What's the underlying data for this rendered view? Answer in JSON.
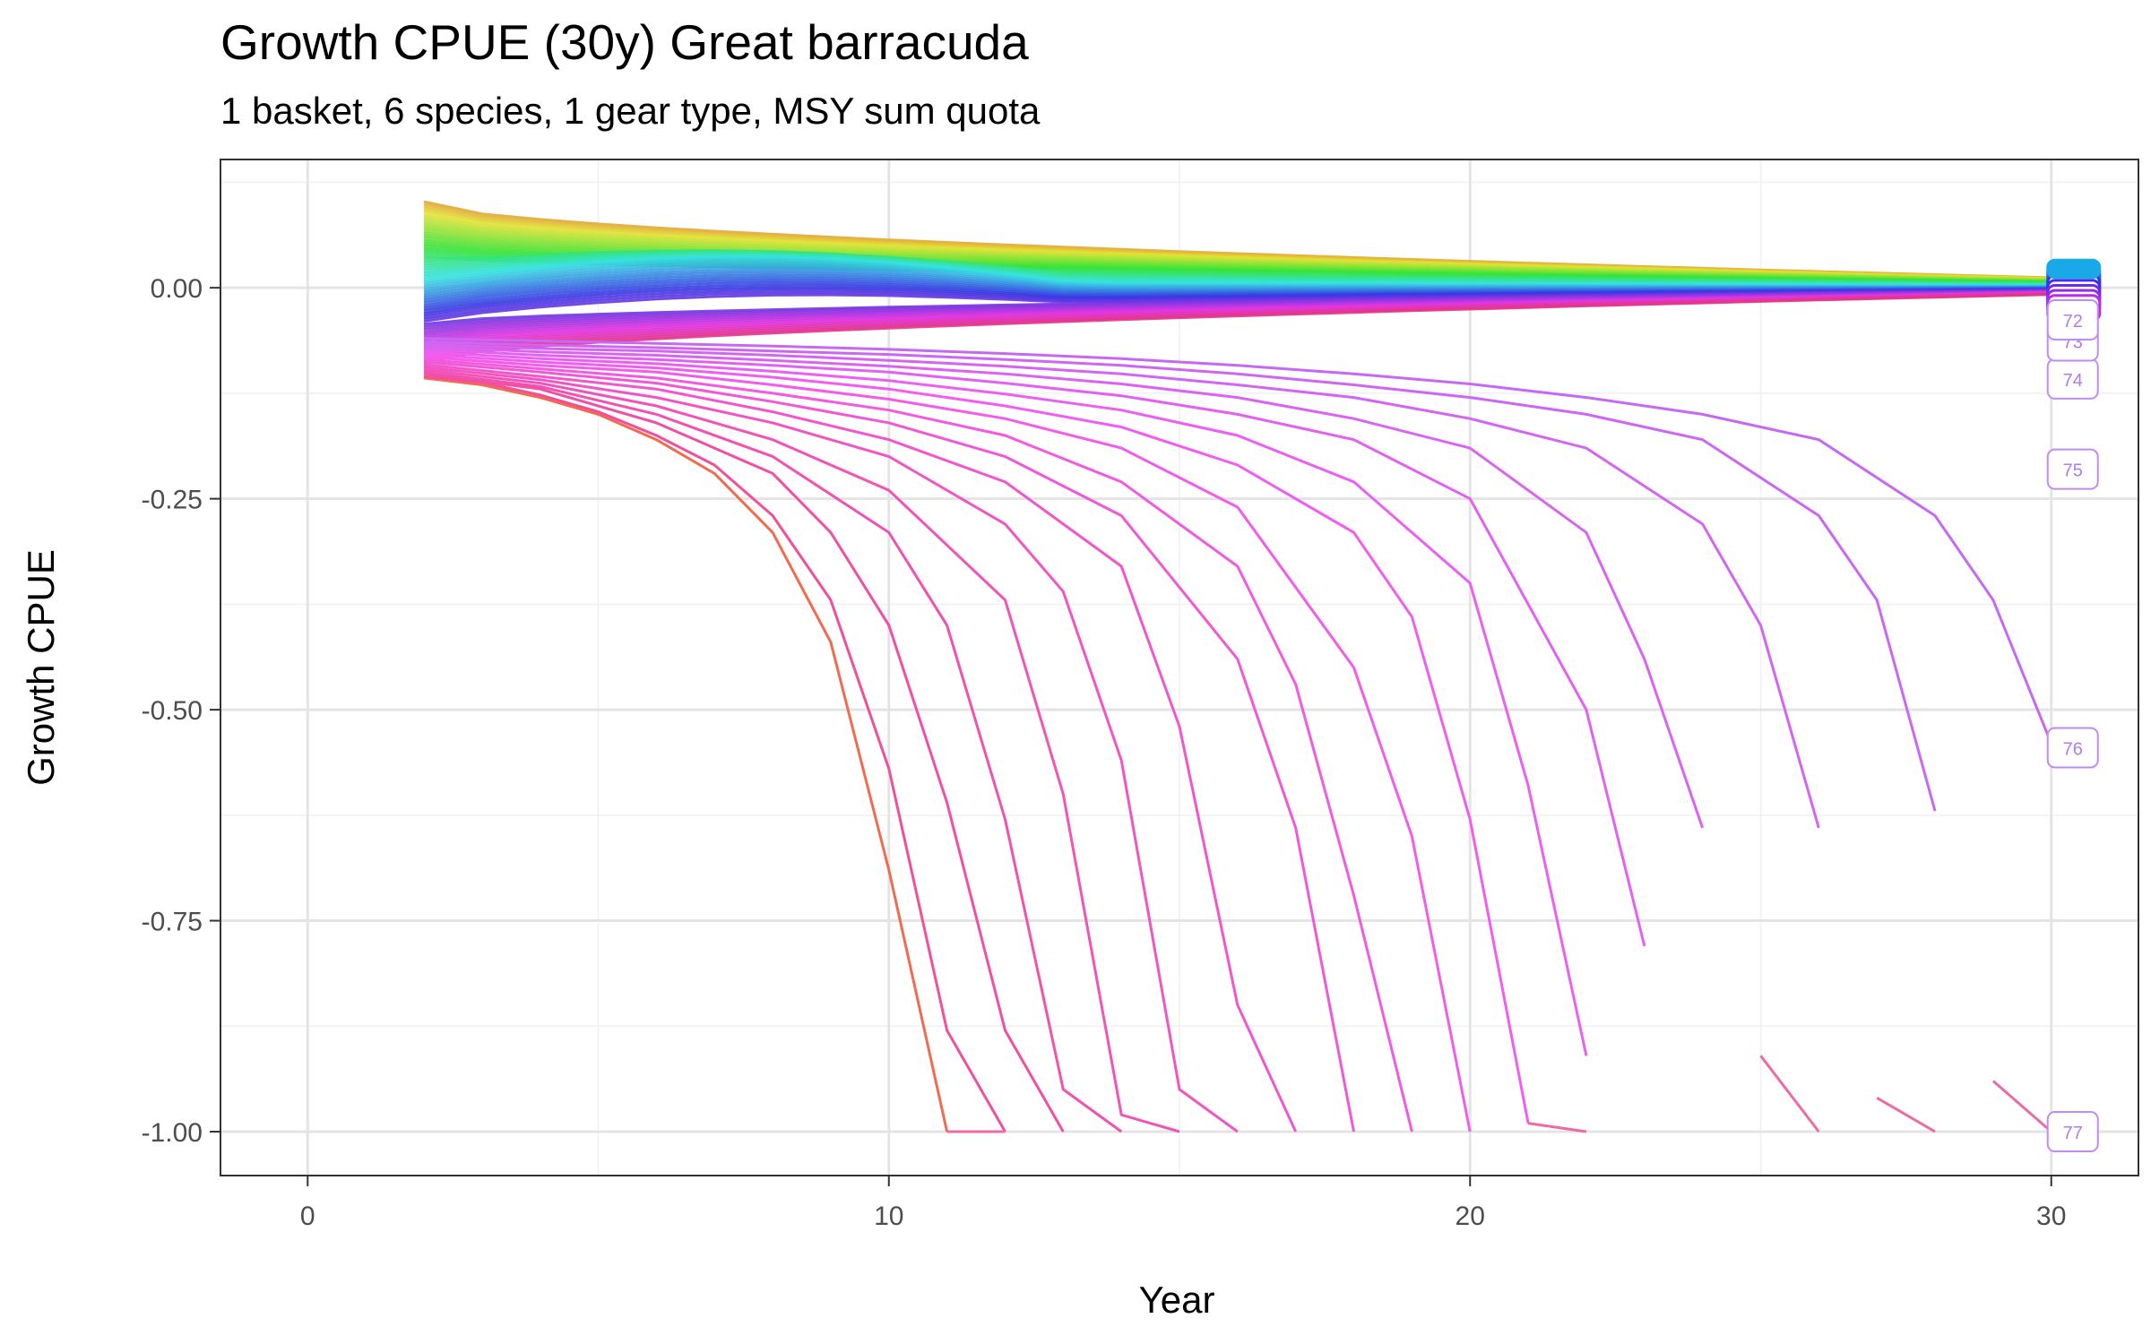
{
  "chart_data": {
    "type": "line",
    "title": "Growth CPUE (30y) Great barracuda",
    "subtitle": "1 basket, 6 species, 1 gear type, MSY sum quota",
    "xlabel": "Year",
    "ylabel": "Growth CPUE",
    "xlim": [
      -1.5,
      31.5
    ],
    "ylim": [
      -1.052,
      0.152
    ],
    "x_ticks": [
      0,
      10,
      20,
      30
    ],
    "x_tick_labels": [
      "0",
      "10",
      "20",
      "30"
    ],
    "y_ticks": [
      0.0,
      -0.25,
      -0.5,
      -0.75,
      -1.0
    ],
    "y_tick_labels": [
      "0.00",
      "-0.25",
      "-0.50",
      "-0.75",
      "-1.00"
    ],
    "grid": true,
    "legend": "none",
    "collapse_series": [
      {
        "x": [
          2,
          3,
          4,
          5,
          6,
          7,
          8,
          9,
          10,
          11
        ],
        "y": [
          -0.107,
          -0.115,
          -0.13,
          -0.15,
          -0.18,
          -0.22,
          -0.29,
          -0.42,
          -0.69,
          -1.0
        ]
      },
      {
        "x": [
          2,
          3,
          4,
          5,
          6,
          7,
          8,
          9,
          10,
          11,
          12
        ],
        "y": [
          -0.105,
          -0.112,
          -0.127,
          -0.147,
          -0.175,
          -0.21,
          -0.27,
          -0.37,
          -0.57,
          -0.88,
          -1.0
        ]
      },
      {
        "x": [
          2,
          4,
          6,
          8,
          9,
          10,
          11,
          12,
          13
        ],
        "y": [
          -0.102,
          -0.12,
          -0.16,
          -0.22,
          -0.29,
          -0.4,
          -0.61,
          -0.88,
          -1.0
        ]
      },
      {
        "x": [
          2,
          4,
          6,
          8,
          10,
          11,
          12,
          13,
          14
        ],
        "y": [
          -0.1,
          -0.117,
          -0.15,
          -0.2,
          -0.29,
          -0.4,
          -0.63,
          -0.95,
          -1.0
        ]
      },
      {
        "x": [
          2,
          4,
          6,
          8,
          10,
          12,
          13,
          14,
          15
        ],
        "y": [
          -0.097,
          -0.113,
          -0.14,
          -0.18,
          -0.24,
          -0.37,
          -0.6,
          -0.98,
          -1.0
        ]
      },
      {
        "x": [
          2,
          4,
          6,
          8,
          10,
          12,
          13,
          14,
          15,
          16
        ],
        "y": [
          -0.094,
          -0.109,
          -0.13,
          -0.16,
          -0.2,
          -0.28,
          -0.36,
          -0.56,
          -0.95,
          -1.0
        ]
      },
      {
        "x": [
          2,
          4,
          6,
          8,
          10,
          12,
          14,
          15,
          16,
          17
        ],
        "y": [
          -0.091,
          -0.105,
          -0.12,
          -0.147,
          -0.18,
          -0.23,
          -0.33,
          -0.52,
          -0.85,
          -1.0
        ]
      },
      {
        "x": [
          2,
          4,
          6,
          8,
          10,
          12,
          14,
          16,
          17,
          18
        ],
        "y": [
          -0.088,
          -0.1,
          -0.113,
          -0.135,
          -0.16,
          -0.2,
          -0.27,
          -0.44,
          -0.64,
          -1.0
        ]
      },
      {
        "x": [
          2,
          4,
          6,
          8,
          10,
          12,
          14,
          16,
          17,
          18,
          19
        ],
        "y": [
          -0.085,
          -0.096,
          -0.107,
          -0.125,
          -0.145,
          -0.175,
          -0.23,
          -0.33,
          -0.47,
          -0.72,
          -1.0
        ]
      },
      {
        "x": [
          2,
          4,
          6,
          8,
          10,
          12,
          14,
          16,
          18,
          19,
          20
        ],
        "y": [
          -0.082,
          -0.092,
          -0.1,
          -0.115,
          -0.132,
          -0.155,
          -0.19,
          -0.26,
          -0.45,
          -0.65,
          -1.0
        ]
      },
      {
        "x": [
          2,
          4,
          6,
          8,
          10,
          12,
          14,
          16,
          18,
          19,
          20,
          21
        ],
        "y": [
          -0.079,
          -0.088,
          -0.095,
          -0.106,
          -0.12,
          -0.14,
          -0.165,
          -0.21,
          -0.29,
          -0.39,
          -0.63,
          -0.99
        ]
      },
      {
        "x": [
          2,
          4,
          6,
          8,
          10,
          12,
          14,
          16,
          18,
          20,
          21,
          22
        ],
        "y": [
          -0.076,
          -0.084,
          -0.09,
          -0.099,
          -0.11,
          -0.126,
          -0.145,
          -0.175,
          -0.23,
          -0.35,
          -0.59,
          -0.91
        ]
      },
      {
        "x": [
          2,
          4,
          6,
          8,
          10,
          12,
          14,
          16,
          18,
          20,
          22,
          23
        ],
        "y": [
          -0.073,
          -0.08,
          -0.085,
          -0.092,
          -0.1,
          -0.113,
          -0.128,
          -0.15,
          -0.18,
          -0.25,
          -0.5,
          -0.78
        ]
      },
      {
        "x": [
          2,
          4,
          6,
          8,
          10,
          12,
          14,
          16,
          18,
          20,
          22,
          23,
          24
        ],
        "y": [
          -0.07,
          -0.076,
          -0.08,
          -0.086,
          -0.093,
          -0.102,
          -0.114,
          -0.13,
          -0.155,
          -0.19,
          -0.29,
          -0.44,
          -0.64
        ]
      },
      {
        "x": [
          2,
          4,
          6,
          8,
          10,
          12,
          14,
          16,
          18,
          20,
          22,
          24,
          25,
          26
        ],
        "y": [
          -0.067,
          -0.072,
          -0.075,
          -0.08,
          -0.086,
          -0.093,
          -0.102,
          -0.115,
          -0.13,
          -0.155,
          -0.19,
          -0.28,
          -0.4,
          -0.64
        ]
      },
      {
        "x": [
          2,
          4,
          6,
          8,
          10,
          12,
          14,
          16,
          18,
          20,
          22,
          24,
          26,
          27,
          28
        ],
        "y": [
          -0.064,
          -0.068,
          -0.071,
          -0.075,
          -0.079,
          -0.085,
          -0.092,
          -0.102,
          -0.115,
          -0.13,
          -0.15,
          -0.18,
          -0.27,
          -0.37,
          -0.62
        ]
      },
      {
        "x": [
          2,
          4,
          6,
          8,
          10,
          12,
          14,
          16,
          18,
          20,
          22,
          24,
          26,
          28,
          29,
          30
        ],
        "y": [
          -0.06,
          -0.063,
          -0.066,
          -0.069,
          -0.073,
          -0.078,
          -0.084,
          -0.092,
          -0.102,
          -0.114,
          -0.13,
          -0.15,
          -0.18,
          -0.27,
          -0.37,
          -0.54
        ]
      }
    ],
    "collapse_series_trailing": [
      {
        "x": [
          11,
          12
        ],
        "y": [
          -1.0,
          -1.0
        ]
      },
      {
        "x": [
          29,
          30
        ],
        "y": [
          -0.94,
          -1.0
        ]
      },
      {
        "x": [
          27,
          28
        ],
        "y": [
          -0.96,
          -1.0
        ]
      },
      {
        "x": [
          25,
          26
        ],
        "y": [
          -0.91,
          -1.0
        ]
      },
      {
        "x": [
          21,
          22
        ],
        "y": [
          -0.99,
          -1.0
        ]
      }
    ],
    "label_badges": [
      {
        "label": "77",
        "y": -1.0
      },
      {
        "label": "76",
        "y": -0.545
      },
      {
        "label": "75",
        "y": -0.215
      },
      {
        "label": "74",
        "y": -0.108
      },
      {
        "label": "73",
        "y": -0.063
      },
      {
        "label": "72",
        "y": -0.038
      }
    ]
  }
}
